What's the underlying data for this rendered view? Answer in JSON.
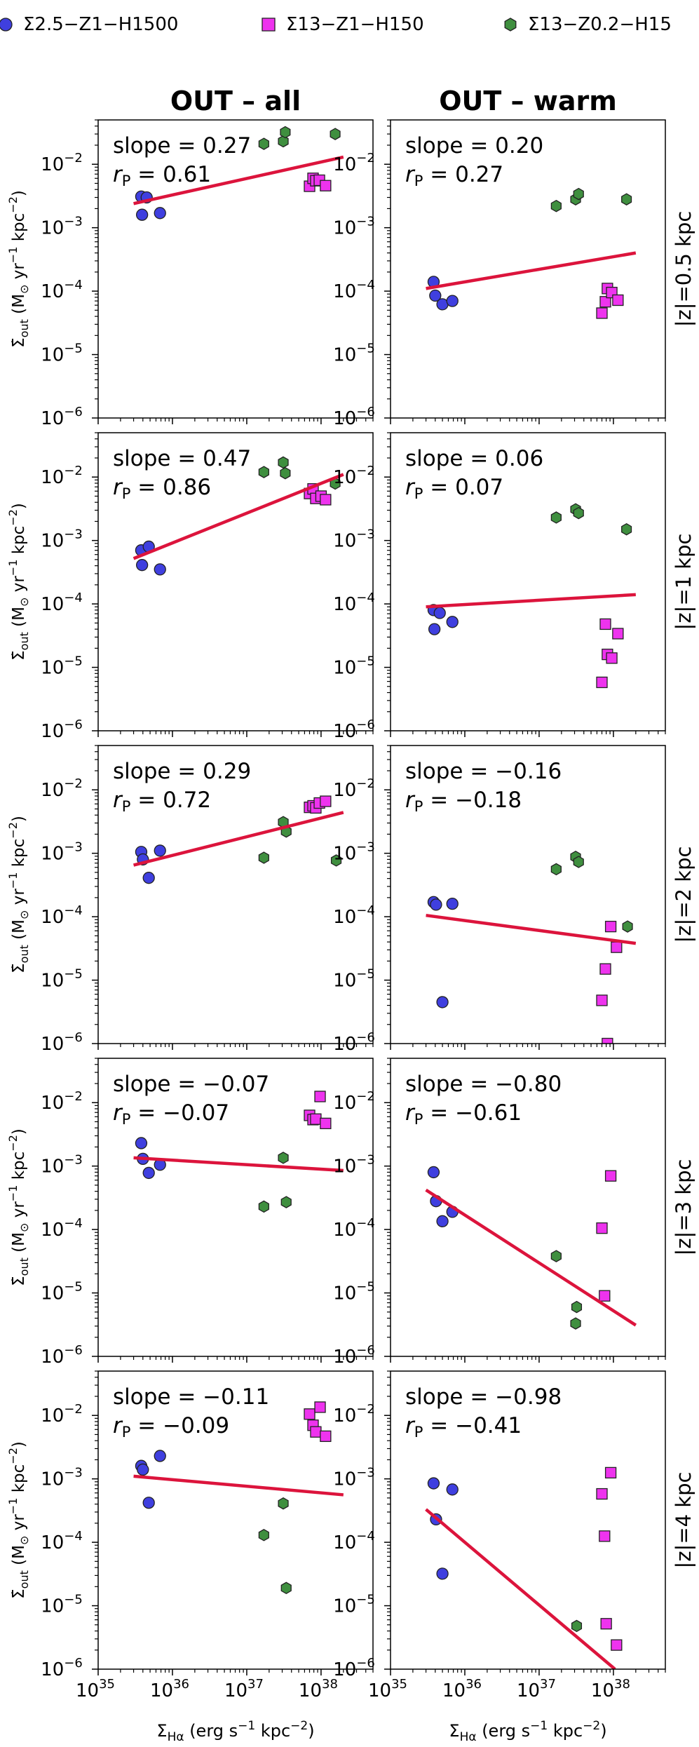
{
  "legend": [
    {
      "label": "Σ2.5−Z1−H1500",
      "marker": "circle",
      "color": "#3f3fdf"
    },
    {
      "label": "Σ13−Z1−H150",
      "marker": "square",
      "color": "#ee33ee"
    },
    {
      "label": "Σ13−Z0.2−H15",
      "marker": "hexagon",
      "color": "#3f8f3f"
    }
  ],
  "colors": {
    "fit_line": "#dc143c",
    "edge": "#222222"
  },
  "chart_data": {
    "type": "scatter",
    "xscale": "log",
    "yscale": "log",
    "xlim": [
      1e+35,
      5e+38
    ],
    "ylim": [
      1e-06,
      0.05
    ],
    "x_ticks": [
      {
        "v": 1e+35,
        "label": "10",
        "exp": "35"
      },
      {
        "v": 1e+36,
        "label": "10",
        "exp": "36"
      },
      {
        "v": 1e+37,
        "label": "10",
        "exp": "37"
      },
      {
        "v": 1e+38,
        "label": "10",
        "exp": "38"
      }
    ],
    "y_ticks": [
      {
        "v": 1e-06,
        "label": "10",
        "exp": "−6"
      },
      {
        "v": 1e-05,
        "label": "10",
        "exp": "−5"
      },
      {
        "v": 0.0001,
        "label": "10",
        "exp": "−4"
      },
      {
        "v": 0.001,
        "label": "10",
        "exp": "−3"
      },
      {
        "v": 0.01,
        "label": "10",
        "exp": "−2"
      }
    ],
    "xlabel": {
      "main": "Σ",
      "sub": "Hα",
      "rest": "  (erg s",
      "sup": "−1",
      "rest2": " kpc",
      "sup2": "−2",
      "end": ")"
    },
    "ylabel": {
      "main": "Σ̇",
      "sub": "out",
      "rest": "  (M",
      "sun": "⊙",
      "mid": " yr",
      "sup": "−1",
      "rest2": " kpc",
      "sup2": "−2",
      "end": ")"
    },
    "column_titles": [
      "OUT – all",
      "OUT – warm"
    ],
    "row_labels": [
      "|z|=0.5 kpc",
      "|z|=1 kpc",
      "|z|=2 kpc",
      "|z|=3 kpc",
      "|z|=4 kpc"
    ],
    "panels": [
      [
        {
          "slope": "slope = 0.27",
          "rp_label": "r",
          "rp_sub": "P",
          "rp": " = 0.61",
          "fit": [
            [
              3e+35,
              0.0024
            ],
            [
              2e+38,
              0.013
            ]
          ],
          "blue": [
            [
              3.8e+35,
              0.0031
            ],
            [
              4.5e+35,
              0.003
            ],
            [
              3.9e+35,
              0.0016
            ],
            [
              6.8e+35,
              0.0017
            ]
          ],
          "magenta": [
            [
              7e+37,
              0.0045
            ],
            [
              7.8e+37,
              0.006
            ],
            [
              8.5e+37,
              0.0055
            ],
            [
              9.5e+37,
              0.0056
            ],
            [
              1.15e+38,
              0.0046
            ]
          ],
          "green": [
            [
              1.7e+37,
              0.021
            ],
            [
              3.1e+37,
              0.023
            ],
            [
              3.3e+37,
              0.032
            ],
            [
              1.55e+38,
              0.03
            ]
          ]
        },
        {
          "slope": "slope = 0.20",
          "rp_label": "r",
          "rp_sub": "P",
          "rp": " = 0.27",
          "fit": [
            [
              3e+35,
              0.00011
            ],
            [
              2e+38,
              0.0004
            ]
          ],
          "blue": [
            [
              3.8e+35,
              0.00014
            ],
            [
              4e+35,
              8.5e-05
            ],
            [
              5e+35,
              6.2e-05
            ],
            [
              6.8e+35,
              7e-05
            ]
          ],
          "magenta": [
            [
              7e+37,
              4.5e-05
            ],
            [
              7.8e+37,
              6.8e-05
            ],
            [
              8.3e+37,
              0.00011
            ],
            [
              9.5e+37,
              9.5e-05
            ],
            [
              1.15e+38,
              7.2e-05
            ]
          ],
          "green": [
            [
              1.7e+37,
              0.0022
            ],
            [
              3.1e+37,
              0.0028
            ],
            [
              3.4e+37,
              0.0034
            ],
            [
              1.5e+38,
              0.0028
            ]
          ]
        }
      ],
      [
        {
          "slope": "slope = 0.47",
          "rp_label": "r",
          "rp_sub": "P",
          "rp": " = 0.86",
          "fit": [
            [
              3e+35,
              0.00052
            ],
            [
              2e+38,
              0.011
            ]
          ],
          "blue": [
            [
              3.8e+35,
              0.0007
            ],
            [
              4.8e+35,
              0.0008
            ],
            [
              3.9e+35,
              0.00041
            ],
            [
              6.8e+35,
              0.00035
            ]
          ],
          "magenta": [
            [
              7e+37,
              0.0055
            ],
            [
              7.8e+37,
              0.0065
            ],
            [
              8.5e+37,
              0.0046
            ],
            [
              1e+38,
              0.005
            ],
            [
              1.15e+38,
              0.0044
            ]
          ],
          "green": [
            [
              1.7e+37,
              0.012
            ],
            [
              3.1e+37,
              0.017
            ],
            [
              3.3e+37,
              0.0115
            ],
            [
              1.55e+38,
              0.0079
            ]
          ]
        },
        {
          "slope": "slope = 0.06",
          "rp_label": "r",
          "rp_sub": "P",
          "rp": " = 0.07",
          "fit": [
            [
              3e+35,
              9e-05
            ],
            [
              2e+38,
              0.00014
            ]
          ],
          "blue": [
            [
              3.8e+35,
              8e-05
            ],
            [
              4.6e+35,
              7.2e-05
            ],
            [
              3.9e+35,
              4e-05
            ],
            [
              6.8e+35,
              5.2e-05
            ]
          ],
          "magenta": [
            [
              7e+37,
              5.8e-06
            ],
            [
              7.8e+37,
              4.8e-05
            ],
            [
              8.3e+37,
              1.6e-05
            ],
            [
              9.5e+37,
              1.4e-05
            ],
            [
              1.15e+38,
              3.4e-05
            ]
          ],
          "green": [
            [
              1.7e+37,
              0.0023
            ],
            [
              3.1e+37,
              0.0031
            ],
            [
              3.4e+37,
              0.0027
            ],
            [
              1.5e+38,
              0.0015
            ]
          ]
        }
      ],
      [
        {
          "slope": "slope = 0.29",
          "rp_label": "r",
          "rp_sub": "P",
          "rp": " = 0.72",
          "fit": [
            [
              3e+35,
              0.00065
            ],
            [
              2e+38,
              0.0044
            ]
          ],
          "blue": [
            [
              3.8e+35,
              0.00105
            ],
            [
              4e+35,
              0.0008
            ],
            [
              4.8e+35,
              0.00041
            ],
            [
              6.8e+35,
              0.0011
            ]
          ],
          "magenta": [
            [
              7e+37,
              0.0053
            ],
            [
              7.8e+37,
              0.0056
            ],
            [
              8.5e+37,
              0.0052
            ],
            [
              9.5e+37,
              0.0062
            ],
            [
              1.15e+38,
              0.0066
            ]
          ],
          "green": [
            [
              1.7e+37,
              0.00085
            ],
            [
              3.1e+37,
              0.0031
            ],
            [
              3.4e+37,
              0.0022
            ],
            [
              1.6e+38,
              0.00077
            ]
          ]
        },
        {
          "slope": "slope = −0.16",
          "rp_label": "r",
          "rp_sub": "P",
          "rp": " = −0.18",
          "fit": [
            [
              3e+35,
              0.000105
            ],
            [
              2e+38,
              3.8e-05
            ]
          ],
          "blue": [
            [
              3.8e+35,
              0.00017
            ],
            [
              4.1e+35,
              0.000155
            ],
            [
              6.8e+35,
              0.00016
            ],
            [
              5e+35,
              4.5e-06
            ]
          ],
          "magenta": [
            [
              7e+37,
              4.8e-06
            ],
            [
              7.8e+37,
              1.5e-05
            ],
            [
              8.3e+37,
              1e-06
            ],
            [
              9.2e+37,
              7e-05
            ],
            [
              1.1e+38,
              3.3e-05
            ]
          ],
          "green": [
            [
              1.7e+37,
              0.00056
            ],
            [
              3.1e+37,
              0.00088
            ],
            [
              3.4e+37,
              0.00073
            ],
            [
              1.55e+38,
              7e-05
            ]
          ]
        }
      ],
      [
        {
          "slope": "slope = −0.07",
          "rp_label": "r",
          "rp_sub": "P",
          "rp": " = −0.07",
          "fit": [
            [
              3e+35,
              0.00135
            ],
            [
              2e+38,
              0.00085
            ]
          ],
          "blue": [
            [
              3.8e+35,
              0.0023
            ],
            [
              4e+35,
              0.0013
            ],
            [
              4.8e+35,
              0.00078
            ],
            [
              6.8e+35,
              0.00105
            ]
          ],
          "magenta": [
            [
              7e+37,
              0.0063
            ],
            [
              7.8e+37,
              0.0054
            ],
            [
              8.5e+37,
              0.0055
            ],
            [
              9.7e+37,
              0.0125
            ],
            [
              1.15e+38,
              0.0047
            ]
          ],
          "green": [
            [
              1.7e+37,
              0.00023
            ],
            [
              3.1e+37,
              0.00135
            ],
            [
              3.4e+37,
              0.00027
            ]
          ]
        },
        {
          "slope": "slope = −0.80",
          "rp_label": "r",
          "rp_sub": "P",
          "rp": " = −0.61",
          "fit": [
            [
              3e+35,
              0.00042
            ],
            [
              2e+38,
              3.1e-06
            ]
          ],
          "blue": [
            [
              3.8e+35,
              0.0008
            ],
            [
              4.1e+35,
              0.00028
            ],
            [
              6.8e+35,
              0.00019
            ],
            [
              5e+35,
              0.000135
            ]
          ],
          "magenta": [
            [
              7e+37,
              0.000105
            ],
            [
              7.6e+37,
              9e-06
            ],
            [
              9.2e+37,
              0.0007
            ]
          ],
          "green": [
            [
              1.7e+37,
              3.8e-05
            ],
            [
              3.2e+37,
              6e-06
            ],
            [
              3.1e+37,
              3.3e-06
            ]
          ]
        }
      ],
      [
        {
          "slope": "slope = −0.11",
          "rp_label": "r",
          "rp_sub": "P",
          "rp": " = −0.09",
          "fit": [
            [
              3e+35,
              0.0011
            ],
            [
              2e+38,
              0.00056
            ]
          ],
          "blue": [
            [
              3.8e+35,
              0.0016
            ],
            [
              4e+35,
              0.0014
            ],
            [
              6.8e+35,
              0.0023
            ],
            [
              4.8e+35,
              0.00042
            ]
          ],
          "magenta": [
            [
              7e+37,
              0.0105
            ],
            [
              7.8e+37,
              0.007
            ],
            [
              8.5e+37,
              0.0055
            ],
            [
              9.7e+37,
              0.0135
            ],
            [
              1.15e+38,
              0.0047
            ]
          ],
          "green": [
            [
              1.7e+37,
              0.00013
            ],
            [
              3.1e+37,
              0.00041
            ],
            [
              3.4e+37,
              1.9e-05
            ]
          ]
        },
        {
          "slope": "slope = −0.98",
          "rp_label": "r",
          "rp_sub": "P",
          "rp": " = −0.41",
          "fit": [
            [
              3e+35,
              0.00033
            ],
            [
              1.05e+38,
              1e-06
            ]
          ],
          "blue": [
            [
              3.8e+35,
              0.00085
            ],
            [
              4.1e+35,
              0.00023
            ],
            [
              6.8e+35,
              0.00068
            ],
            [
              5e+35,
              3.2e-05
            ]
          ],
          "magenta": [
            [
              7e+37,
              0.00058
            ],
            [
              7.6e+37,
              0.000125
            ],
            [
              8e+37,
              5.2e-06
            ],
            [
              9.2e+37,
              0.00125
            ],
            [
              1.1e+38,
              2.4e-06
            ]
          ],
          "green": [
            [
              3.2e+37,
              4.8e-06
            ]
          ]
        }
      ]
    ]
  }
}
